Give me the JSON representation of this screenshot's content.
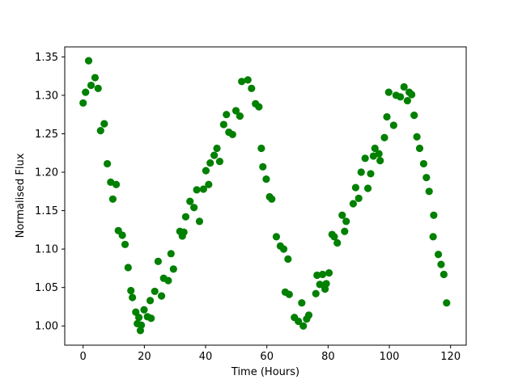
{
  "figure": {
    "background": "#ffffff",
    "spine_color": "#000000",
    "tick_color": "#000000",
    "text_color": "#000000"
  },
  "chart_data": {
    "type": "scatter",
    "title": "",
    "xlabel": "Time (Hours)",
    "ylabel": "Normalised Flux",
    "grid": false,
    "legend": "none",
    "marker_color": "#008000",
    "marker_shape": "circle",
    "xlim": [
      -6.0,
      125.1
    ],
    "ylim": [
      0.975,
      1.363
    ],
    "x_ticks": [
      0,
      20,
      40,
      60,
      80,
      100,
      120
    ],
    "x_tick_labels": [
      "0",
      "20",
      "40",
      "60",
      "80",
      "100",
      "120"
    ],
    "y_ticks": [
      1.0,
      1.05,
      1.1,
      1.15,
      1.2,
      1.25,
      1.3,
      1.35
    ],
    "y_tick_labels": [
      "1.00",
      "1.05",
      "1.10",
      "1.15",
      "1.20",
      "1.25",
      "1.30",
      "1.35"
    ],
    "series": [
      {
        "name": "normalised-flux",
        "color": "#008000",
        "points": [
          [
            0.0,
            1.29
          ],
          [
            0.8,
            1.304
          ],
          [
            1.8,
            1.345
          ],
          [
            2.6,
            1.313
          ],
          [
            3.9,
            1.323
          ],
          [
            4.9,
            1.309
          ],
          [
            5.7,
            1.254
          ],
          [
            6.9,
            1.263
          ],
          [
            7.9,
            1.211
          ],
          [
            9.0,
            1.187
          ],
          [
            9.7,
            1.165
          ],
          [
            10.8,
            1.184
          ],
          [
            11.5,
            1.124
          ],
          [
            12.8,
            1.118
          ],
          [
            13.7,
            1.106
          ],
          [
            14.7,
            1.076
          ],
          [
            15.6,
            1.046
          ],
          [
            16.1,
            1.037
          ],
          [
            17.2,
            1.018
          ],
          [
            17.7,
            1.003
          ],
          [
            18.2,
            1.011
          ],
          [
            18.7,
            0.994
          ],
          [
            19.0,
            1.001
          ],
          [
            19.9,
            1.021
          ],
          [
            21.0,
            1.012
          ],
          [
            21.9,
            1.033
          ],
          [
            22.2,
            1.01
          ],
          [
            23.4,
            1.045
          ],
          [
            24.5,
            1.084
          ],
          [
            25.6,
            1.039
          ],
          [
            26.3,
            1.062
          ],
          [
            27.8,
            1.059
          ],
          [
            28.7,
            1.094
          ],
          [
            29.5,
            1.074
          ],
          [
            31.6,
            1.123
          ],
          [
            32.4,
            1.117
          ],
          [
            32.9,
            1.122
          ],
          [
            33.5,
            1.142
          ],
          [
            34.9,
            1.162
          ],
          [
            36.2,
            1.154
          ],
          [
            37.1,
            1.177
          ],
          [
            38.0,
            1.136
          ],
          [
            39.3,
            1.178
          ],
          [
            40.1,
            1.202
          ],
          [
            41.0,
            1.184
          ],
          [
            41.5,
            1.212
          ],
          [
            42.8,
            1.222
          ],
          [
            43.7,
            1.231
          ],
          [
            44.6,
            1.214
          ],
          [
            45.9,
            1.262
          ],
          [
            46.8,
            1.275
          ],
          [
            47.6,
            1.252
          ],
          [
            48.8,
            1.249
          ],
          [
            49.9,
            1.28
          ],
          [
            51.2,
            1.273
          ],
          [
            51.8,
            1.318
          ],
          [
            53.8,
            1.32
          ],
          [
            55.0,
            1.309
          ],
          [
            56.3,
            1.289
          ],
          [
            57.4,
            1.285
          ],
          [
            58.2,
            1.231
          ],
          [
            58.7,
            1.207
          ],
          [
            59.8,
            1.191
          ],
          [
            60.9,
            1.168
          ],
          [
            61.6,
            1.165
          ],
          [
            63.1,
            1.116
          ],
          [
            64.4,
            1.104
          ],
          [
            65.5,
            1.1
          ],
          [
            66.9,
            1.087
          ],
          [
            66.0,
            1.044
          ],
          [
            67.3,
            1.041
          ],
          [
            69.0,
            1.011
          ],
          [
            70.3,
            1.006
          ],
          [
            71.4,
            1.03
          ],
          [
            71.9,
            1.0
          ],
          [
            73.0,
            1.009
          ],
          [
            73.7,
            1.014
          ],
          [
            76.0,
            1.042
          ],
          [
            76.4,
            1.066
          ],
          [
            77.3,
            1.054
          ],
          [
            78.2,
            1.067
          ],
          [
            79.0,
            1.048
          ],
          [
            79.4,
            1.055
          ],
          [
            80.3,
            1.069
          ],
          [
            81.3,
            1.119
          ],
          [
            82.0,
            1.116
          ],
          [
            83.0,
            1.108
          ],
          [
            84.6,
            1.144
          ],
          [
            85.4,
            1.123
          ],
          [
            85.9,
            1.136
          ],
          [
            88.2,
            1.159
          ],
          [
            89.0,
            1.18
          ],
          [
            90.0,
            1.166
          ],
          [
            90.8,
            1.2
          ],
          [
            92.1,
            1.218
          ],
          [
            93.0,
            1.179
          ],
          [
            93.9,
            1.198
          ],
          [
            94.8,
            1.221
          ],
          [
            95.3,
            1.231
          ],
          [
            96.6,
            1.224
          ],
          [
            97.0,
            1.215
          ],
          [
            98.4,
            1.245
          ],
          [
            99.2,
            1.272
          ],
          [
            99.8,
            1.304
          ],
          [
            101.4,
            1.261
          ],
          [
            102.2,
            1.3
          ],
          [
            103.6,
            1.298
          ],
          [
            104.8,
            1.311
          ],
          [
            105.9,
            1.293
          ],
          [
            106.5,
            1.304
          ],
          [
            107.3,
            1.301
          ],
          [
            108.1,
            1.274
          ],
          [
            109.0,
            1.246
          ],
          [
            109.9,
            1.231
          ],
          [
            111.2,
            1.211
          ],
          [
            112.1,
            1.193
          ],
          [
            113.0,
            1.175
          ],
          [
            114.3,
            1.116
          ],
          [
            114.5,
            1.144
          ],
          [
            116.0,
            1.093
          ],
          [
            116.9,
            1.08
          ],
          [
            117.8,
            1.067
          ],
          [
            118.7,
            1.03
          ]
        ]
      }
    ]
  }
}
